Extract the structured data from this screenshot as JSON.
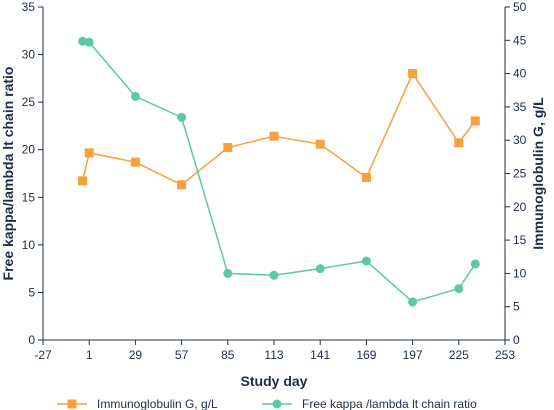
{
  "chart_data": {
    "type": "line",
    "xlabel": "Study day",
    "ylabel_left": "Free kappa/lambda lt chain ratio",
    "ylabel_right": "Immunoglobulin G, g/L",
    "xlim": [
      -27,
      253
    ],
    "xticks": [
      -27,
      1,
      29,
      57,
      85,
      113,
      141,
      169,
      197,
      225,
      253
    ],
    "ylim_left": [
      0,
      35
    ],
    "yticks_left": [
      0,
      5,
      10,
      15,
      20,
      25,
      30,
      35
    ],
    "ylim_right": [
      0,
      50
    ],
    "yticks_right": [
      0,
      5,
      10,
      15,
      20,
      25,
      30,
      35,
      40,
      45,
      50
    ],
    "legend_position": "bottom",
    "series": [
      {
        "name": "Immunoglobulin G, g/L",
        "axis": "right",
        "marker": "square",
        "color": "#f7a03c",
        "x": [
          -3,
          1,
          29,
          57,
          85,
          113,
          141,
          169,
          197,
          225,
          235
        ],
        "y": [
          23.9,
          28.1,
          26.7,
          23.3,
          28.9,
          30.6,
          29.4,
          24.4,
          40.0,
          29.6,
          32.9
        ]
      },
      {
        "name": "Free kappa /lambda lt chain ratio",
        "axis": "left",
        "marker": "circle",
        "color": "#5cc8a8",
        "x": [
          -3,
          1,
          29,
          57,
          85,
          113,
          141,
          169,
          197,
          225,
          235
        ],
        "y": [
          31.4,
          31.3,
          25.6,
          23.4,
          7.0,
          6.8,
          7.5,
          8.3,
          4.0,
          5.4,
          8.0
        ]
      }
    ]
  }
}
